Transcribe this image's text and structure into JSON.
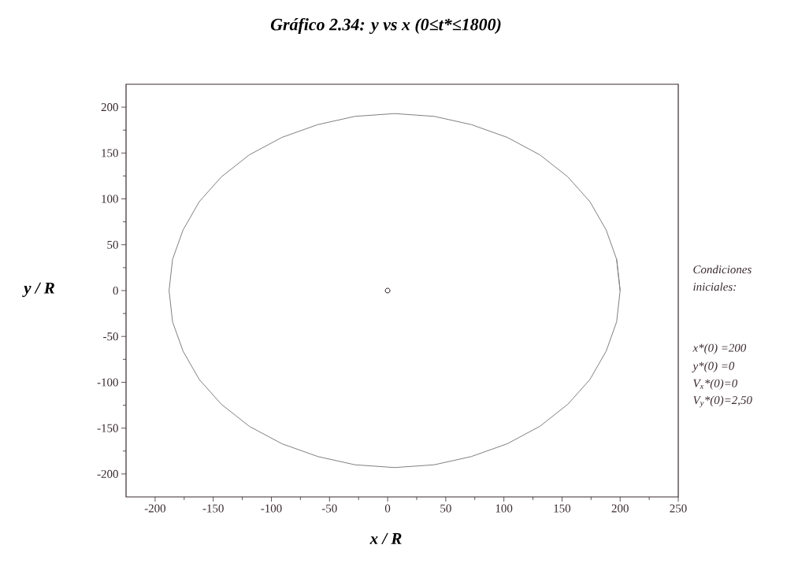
{
  "chart_data": {
    "type": "line",
    "title": "**Gráfico 2.34: y vs x    (0≤t*≤1800)**",
    "xlabel": "x / R",
    "ylabel": "y / R",
    "xlim": [
      -225,
      250
    ],
    "ylim": [
      -225,
      225
    ],
    "xticks": [
      -200,
      -150,
      -100,
      -50,
      0,
      50,
      100,
      150,
      200,
      250
    ],
    "yticks": [
      -200,
      -150,
      -100,
      -50,
      0,
      50,
      100,
      150,
      200
    ],
    "series": [
      {
        "color": "#808080",
        "x": [
          200,
          197,
          188,
          174,
          155,
          131,
          103,
          72,
          40,
          6,
          -28,
          -60,
          -91,
          -119,
          -143,
          -162,
          -176,
          -185,
          -188,
          -185,
          -176,
          -162,
          -143,
          -119,
          -91,
          -60,
          -28,
          6,
          40,
          72,
          103,
          131,
          155,
          174,
          188,
          197,
          200,
          197
        ],
        "values": [
          0,
          34,
          66,
          97,
          124,
          148,
          167,
          181,
          190,
          193,
          190,
          181,
          167,
          148,
          124,
          97,
          66,
          34,
          0,
          -34,
          -66,
          -97,
          -124,
          -148,
          -167,
          -181,
          -190,
          -193,
          -190,
          -181,
          -167,
          -148,
          -124,
          -97,
          -66,
          -34,
          0,
          34
        ]
      },
      {
        "type": "scatter",
        "color": "#2a1a20",
        "marker": "circle",
        "x": [
          0
        ],
        "values": [
          0
        ]
      }
    ],
    "annotations": [
      "Condiciones iniciales:",
      "x*(0) =200",
      "y*(0) =0",
      "V$_{x}$*(0)=0",
      "V$_{y}$*(0)=2,50"
    ]
  }
}
